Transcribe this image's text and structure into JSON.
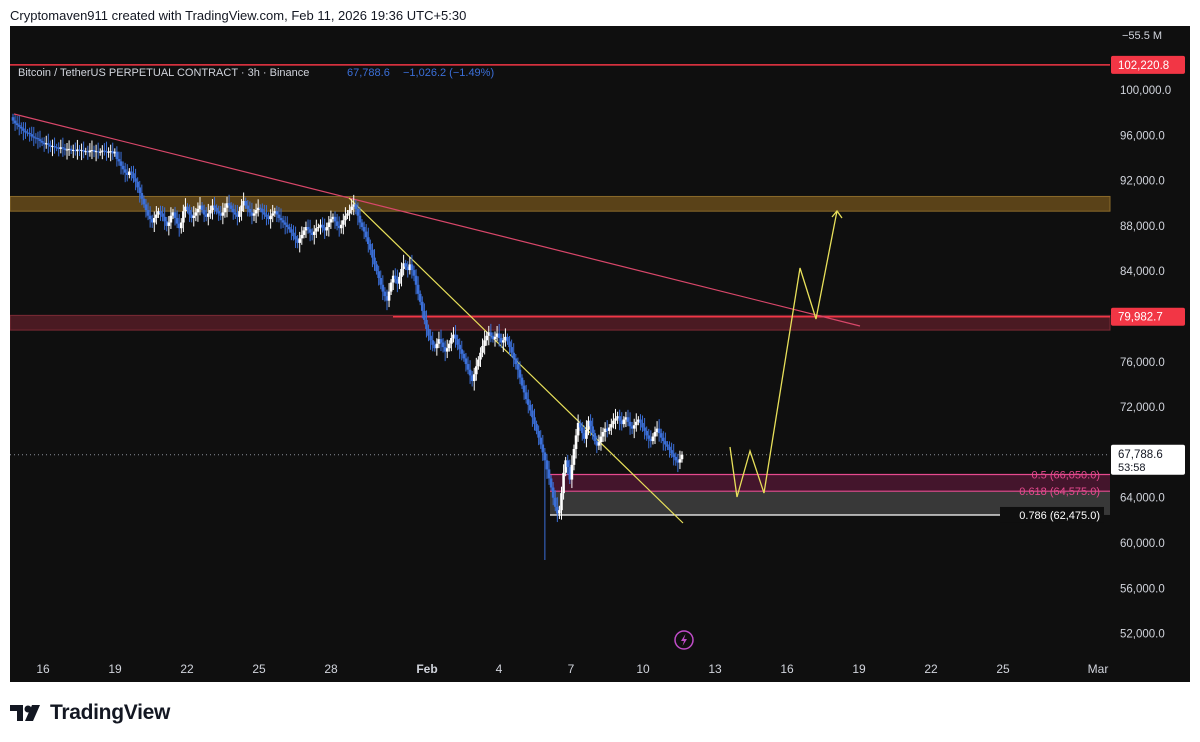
{
  "header": {
    "attribution": "Cryptomaven911 created with TradingView.com, Feb 11, 2026 19:36 UTC+5:30"
  },
  "footer": {
    "brand": "TradingView"
  },
  "legend": {
    "symbol": "Bitcoin / TetherUS PERPETUAL CONTRACT · 3h · Binance",
    "price": "67,788.6",
    "change": "−1,026.2 (−1.49%)"
  },
  "colors": {
    "background": "#0f0f0f",
    "candle_up": "#ffffff",
    "candle_down": "#3b6fd8",
    "red_line": "#f23645",
    "trendline_red": "#d9476a",
    "trendline_yellow": "#e8e05a",
    "path_yellow": "#e8e05a",
    "fib_pink": "#e64a8f",
    "fib_white": "#ffffff",
    "zone_orange": "#5a4218",
    "zone_red": "#4a1a22",
    "zone_grey": "#4a4a4a",
    "axis_text": "#d1d4dc",
    "legend_blue": "#2962ff"
  },
  "icons": [
    "bolt-icon",
    "tradingview-logo"
  ],
  "chart_data": {
    "type": "candlestick",
    "ylim": [
      49000,
      108000
    ],
    "ticks": {
      "y": [
        {
          "value": 100000,
          "label": "100,000.0"
        },
        {
          "value": 96000,
          "label": "96,000.0"
        },
        {
          "value": 92000,
          "label": "92,000.0"
        },
        {
          "value": 88000,
          "label": "88,000.0"
        },
        {
          "value": 84000,
          "label": "84,000.0"
        },
        {
          "value": 76000,
          "label": "76,000.0"
        },
        {
          "value": 72000,
          "label": "72,000.0"
        },
        {
          "value": 64000,
          "label": "64,000.0"
        },
        {
          "value": 60000,
          "label": "60,000.0"
        },
        {
          "value": 56000,
          "label": "56,000.0"
        },
        {
          "value": 52000,
          "label": "52,000.0"
        }
      ],
      "x": [
        "16",
        "19",
        "22",
        "25",
        "28",
        "Feb",
        "4",
        "7",
        "10",
        "13",
        "16",
        "19",
        "22",
        "25",
        "Mar"
      ],
      "top_label": "−55.5 M"
    },
    "price_labels": {
      "top_line": {
        "value": 102220.8,
        "label": "102,220.8"
      },
      "mid_line": {
        "value": 79982.7,
        "label": "79,982.7"
      },
      "last": {
        "value": 67788.6,
        "label": "67,788.6",
        "countdown": "53:58"
      }
    },
    "zones": [
      {
        "name": "supply-zone",
        "from": 89300,
        "to": 90600
      },
      {
        "name": "resistance-zone",
        "from": 78800,
        "to": 80100
      }
    ],
    "fib_levels": [
      {
        "level": "0.5",
        "value": 66050,
        "label": "0.5 (66,050.0)"
      },
      {
        "level": "0.618",
        "value": 64575,
        "label": "0.618 (64,575.0)"
      },
      {
        "level": "0.786",
        "value": 62475,
        "label": "0.786 (62,475.0)"
      }
    ],
    "series_close": [
      97300,
      97050,
      96900,
      96750,
      96600,
      96400,
      96250,
      96200,
      96100,
      95900,
      95800,
      95750,
      95650,
      95500,
      95350,
      95200,
      95300,
      95150,
      95000,
      95050,
      94950,
      94900,
      94800,
      94950,
      94850,
      94700,
      94750,
      94800,
      94650,
      94700,
      94600,
      94750,
      94650,
      94700,
      94550,
      94600,
      94500,
      94650,
      94700,
      94550,
      94600,
      94500,
      94550,
      94650,
      94600,
      94500,
      94550,
      94600,
      94400,
      94550,
      93900,
      93700,
      93300,
      93000,
      92700,
      92500,
      92800,
      92650,
      92200,
      91900,
      91400,
      90900,
      90400,
      89900,
      89400,
      88900,
      88600,
      88300,
      88700,
      89000,
      89300,
      89100,
      88800,
      88400,
      88000,
      88300,
      88900,
      89200,
      88700,
      88200,
      87800,
      88300,
      89300,
      89700,
      89400,
      89000,
      88700,
      88900,
      89200,
      89500,
      89800,
      89400,
      89000,
      88800,
      89100,
      89400,
      89800,
      89600,
      89300,
      89100,
      88900,
      89200,
      89600,
      90000,
      89800,
      89500,
      89200,
      89000,
      88800,
      89300,
      89800,
      90200,
      89800,
      89500,
      89200,
      88900,
      89100,
      89400,
      89600,
      89500,
      89200,
      89000,
      88800,
      88600,
      88900,
      89100,
      89300,
      89000,
      88700,
      88500,
      88300,
      88100,
      87900,
      87700,
      87400,
      87100,
      86800,
      86500,
      86900,
      87200,
      87600,
      87900,
      87700,
      87400,
      87200,
      87500,
      87800,
      87900,
      88100,
      87800,
      87600,
      87900,
      88300,
      88600,
      88800,
      88400,
      88000,
      87800,
      88100,
      88500,
      88900,
      89100,
      89400,
      89700,
      89900,
      89500,
      88900,
      88300,
      87900,
      87500,
      87000,
      86400,
      85900,
      85200,
      84600,
      84000,
      83400,
      82800,
      82200,
      81800,
      81400,
      82200,
      83000,
      83600,
      83300,
      82900,
      83500,
      84200,
      84700,
      84400,
      84100,
      84600,
      84100,
      83600,
      82800,
      82000,
      81300,
      80500,
      79700,
      78900,
      78300,
      77900,
      77500,
      77200,
      77600,
      78000,
      77700,
      77300,
      76900,
      77200,
      77600,
      78100,
      78400,
      78000,
      77500,
      77100,
      76700,
      76300,
      75800,
      75300,
      74800,
      74300,
      74900,
      75600,
      76200,
      76800,
      77400,
      77900,
      78300,
      78600,
      78300,
      78000,
      78200,
      78500,
      78100,
      77700,
      77900,
      78200,
      77800,
      77300,
      76800,
      76300,
      75800,
      75300,
      74600,
      73900,
      73300,
      72700,
      72200,
      71700,
      71100,
      70500,
      69900,
      69300,
      68700,
      68000,
      67300,
      66500,
      65700,
      64900,
      64000,
      63200,
      62600,
      62900,
      64400,
      66200,
      67300,
      66700,
      65600,
      66900,
      68300,
      69500,
      70600,
      70200,
      69700,
      69200,
      70000,
      70800,
      70300,
      69700,
      69000,
      68600,
      68900,
      69400,
      69800,
      70100,
      69900,
      70200,
      70500,
      70800,
      71000,
      71200,
      70800,
      70500,
      70900,
      71100,
      70700,
      70300,
      70100,
      70400,
      70700,
      70900,
      70600,
      70200,
      69900,
      69500,
      69200,
      69000,
      69400,
      69800,
      70100,
      69700,
      69300,
      69000,
      68700,
      68500,
      68200,
      67900,
      67600,
      67300,
      67100,
      67400,
      67800
    ]
  }
}
